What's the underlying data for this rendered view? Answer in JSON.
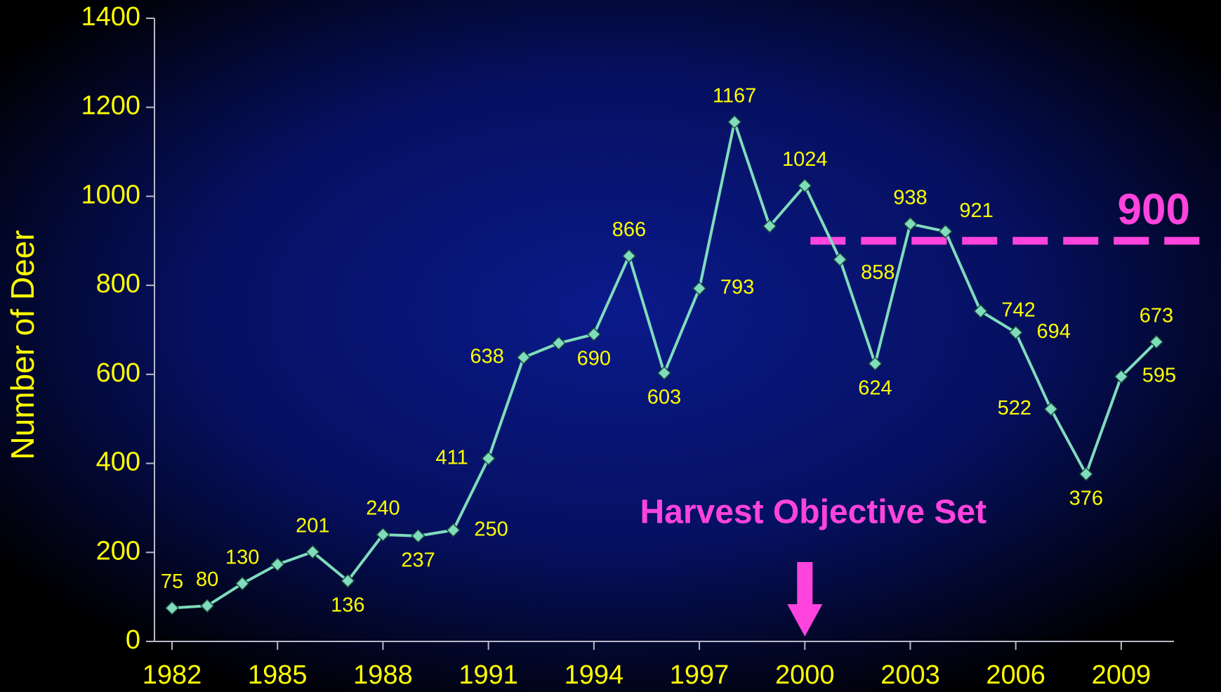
{
  "chart_data": {
    "type": "line",
    "y_label": "Number of Deer",
    "x": [
      1982,
      1983,
      1984,
      1985,
      1986,
      1987,
      1988,
      1989,
      1990,
      1991,
      1992,
      1993,
      1994,
      1995,
      1996,
      1997,
      1998,
      1999,
      2000,
      2001,
      2002,
      2003,
      2004,
      2005,
      2006,
      2007,
      2008,
      2009,
      2010
    ],
    "series": [
      {
        "name": "Number of Deer",
        "color": "#7fdcbc",
        "values": [
          75,
          80,
          130,
          173,
          201,
          136,
          240,
          237,
          250,
          411,
          638,
          670,
          690,
          866,
          603,
          793,
          1167,
          933,
          1024,
          858,
          624,
          938,
          921,
          742,
          694,
          522,
          376,
          595,
          673
        ],
        "value_labels": [
          "75",
          "80",
          "130",
          null,
          "201",
          "136",
          "240",
          "237",
          "250",
          "411",
          "638",
          null,
          "690",
          "866",
          "603",
          "793",
          "1167",
          null,
          "1024",
          "858",
          "624",
          "938",
          "921",
          "742",
          "694",
          "522",
          "376",
          "595",
          "673"
        ]
      }
    ],
    "xlim": [
      1981.5,
      2010.5
    ],
    "xticks": [
      1982,
      1985,
      1988,
      1991,
      1994,
      1997,
      2000,
      2003,
      2006,
      2009
    ],
    "ylim": [
      0,
      1400
    ],
    "yticks": [
      0,
      200,
      400,
      600,
      800,
      1000,
      1200,
      1400
    ],
    "target": {
      "value": 900,
      "label": "900",
      "from": 2000,
      "color": "#ff44dd"
    },
    "annotation": {
      "text": "Harvest Objective Set",
      "x": 2000,
      "color": "#ff44dd"
    }
  }
}
